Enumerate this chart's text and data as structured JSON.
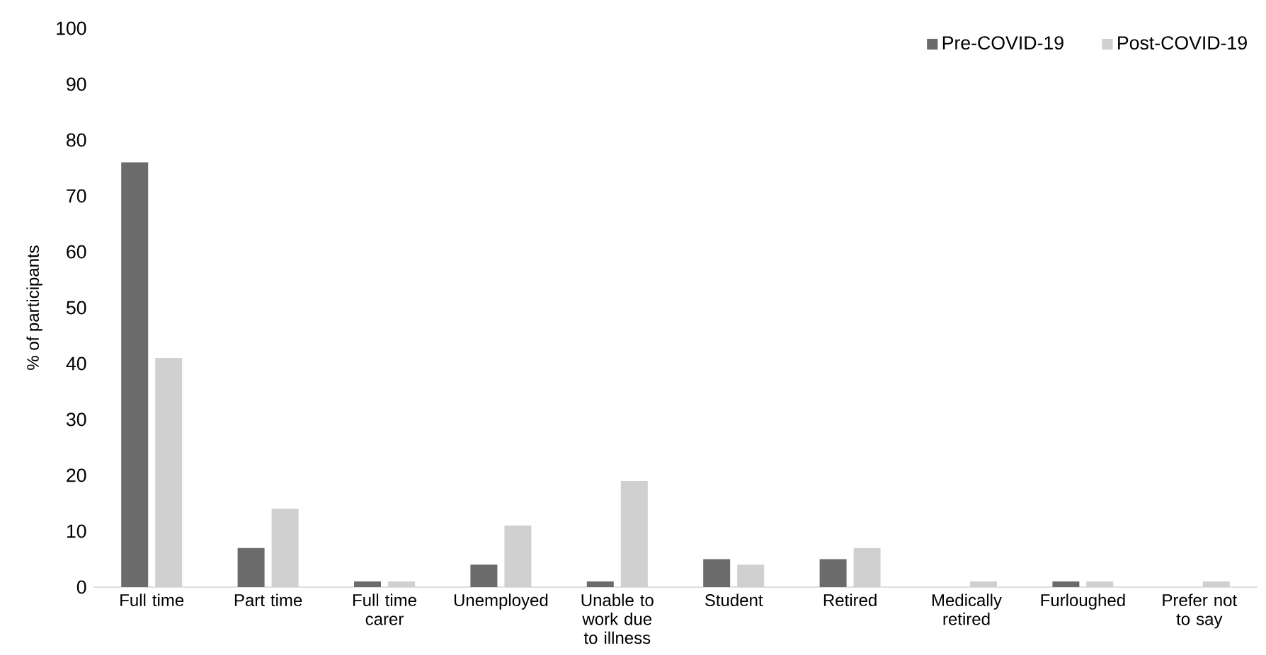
{
  "chart_data": {
    "type": "bar",
    "ylabel": "% of participants",
    "categories": [
      "Full time",
      "Part time",
      "Full time carer",
      "Unemployed",
      "Unable to work due to illness",
      "Student",
      "Retired",
      "Medically retired",
      "Furloughed",
      "Prefer not to say"
    ],
    "series": [
      {
        "name": "Pre-COVID-19",
        "color": "#6b6b6b",
        "values": [
          76,
          7,
          1,
          4,
          1,
          5,
          5,
          0,
          1,
          0
        ]
      },
      {
        "name": "Post-COVID-19",
        "color": "#d0d0d0",
        "values": [
          41,
          14,
          1,
          11,
          19,
          4,
          7,
          1,
          1,
          1
        ]
      }
    ],
    "ylim": [
      0,
      100
    ],
    "yticks": [
      0,
      10,
      20,
      30,
      40,
      50,
      60,
      70,
      80,
      90,
      100
    ],
    "grid": false,
    "legend": "top right"
  }
}
